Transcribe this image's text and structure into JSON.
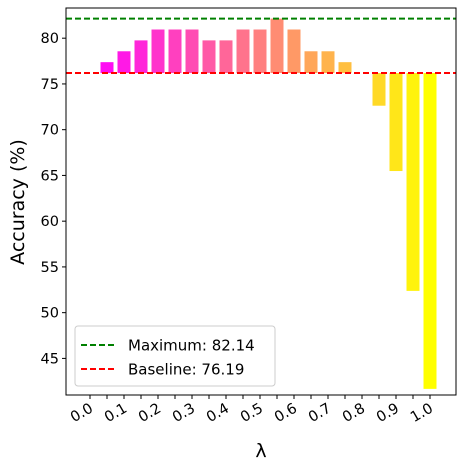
{
  "chart_data": {
    "type": "bar",
    "xlabel": "λ",
    "ylabel": "Accuracy (%)",
    "ylim": [
      41,
      83.3
    ],
    "yticks": [
      45,
      50,
      55,
      60,
      65,
      70,
      75,
      80
    ],
    "xtick_labels": [
      "0.0",
      "0.1",
      "0.2",
      "0.3",
      "0.4",
      "0.5",
      "0.6",
      "0.7",
      "0.8",
      "0.9",
      "1.0"
    ],
    "x": [
      0.0,
      0.05,
      0.1,
      0.15,
      0.2,
      0.25,
      0.3,
      0.35,
      0.4,
      0.45,
      0.5,
      0.55,
      0.6,
      0.65,
      0.7,
      0.75,
      0.8,
      0.85,
      0.9,
      0.95,
      1.0
    ],
    "values": [
      76.19,
      77.38,
      78.57,
      79.76,
      80.95,
      80.95,
      80.95,
      79.76,
      79.76,
      80.95,
      80.95,
      82.14,
      80.95,
      78.57,
      78.57,
      77.38,
      76.19,
      72.62,
      65.48,
      52.38,
      41.67
    ],
    "colors": [
      "#ff00ff",
      "#ff0cf3",
      "#ff19e6",
      "#ff26d9",
      "#ff33cc",
      "#ff40bf",
      "#ff4cb3",
      "#ff59a6",
      "#ff6699",
      "#ff738c",
      "#ff8080",
      "#ff8c73",
      "#ff9966",
      "#ffa659",
      "#ffb34c",
      "#ffbf40",
      "#ffcc33",
      "#ffd926",
      "#ffe619",
      "#fff30c",
      "#ffff00"
    ],
    "baseline_for_bars": 76.19,
    "reference_lines": [
      {
        "label": "Maximum: 82.14",
        "value": 82.14,
        "color": "#008000"
      },
      {
        "label": "Baseline: 76.19",
        "value": 76.19,
        "color": "#ff0000"
      }
    ],
    "legend_position": "lower-left",
    "grid": false
  }
}
